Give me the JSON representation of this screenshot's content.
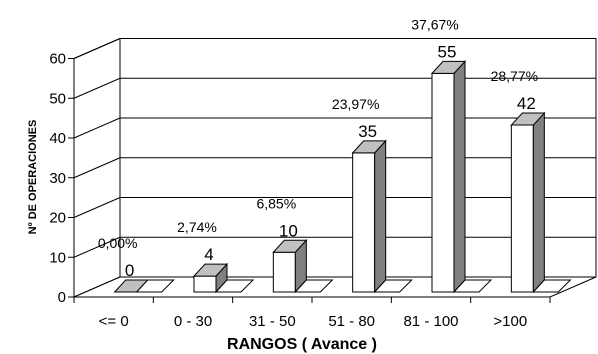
{
  "chart_data": {
    "type": "bar",
    "categories": [
      "<= 0",
      "0 - 30",
      "31 - 50",
      "51 - 80",
      "81 - 100",
      ">100"
    ],
    "values": [
      0,
      4,
      10,
      35,
      55,
      42
    ],
    "percent_labels": [
      "0,00%",
      "2,74%",
      "6,85%",
      "23,97%",
      "37,67%",
      "28,77%"
    ],
    "xlabel": "RANGOS ( Avance )",
    "ylabel": "Nº DE OPERACIONES",
    "ylim": [
      0,
      60
    ],
    "yticks": [
      0,
      10,
      20,
      30,
      40,
      50,
      60
    ],
    "grid": true,
    "style": "3d-column",
    "colors": {
      "front": "#ffffff",
      "side": "#808080",
      "top": "#c0c0c0",
      "stroke": "#000000"
    }
  }
}
